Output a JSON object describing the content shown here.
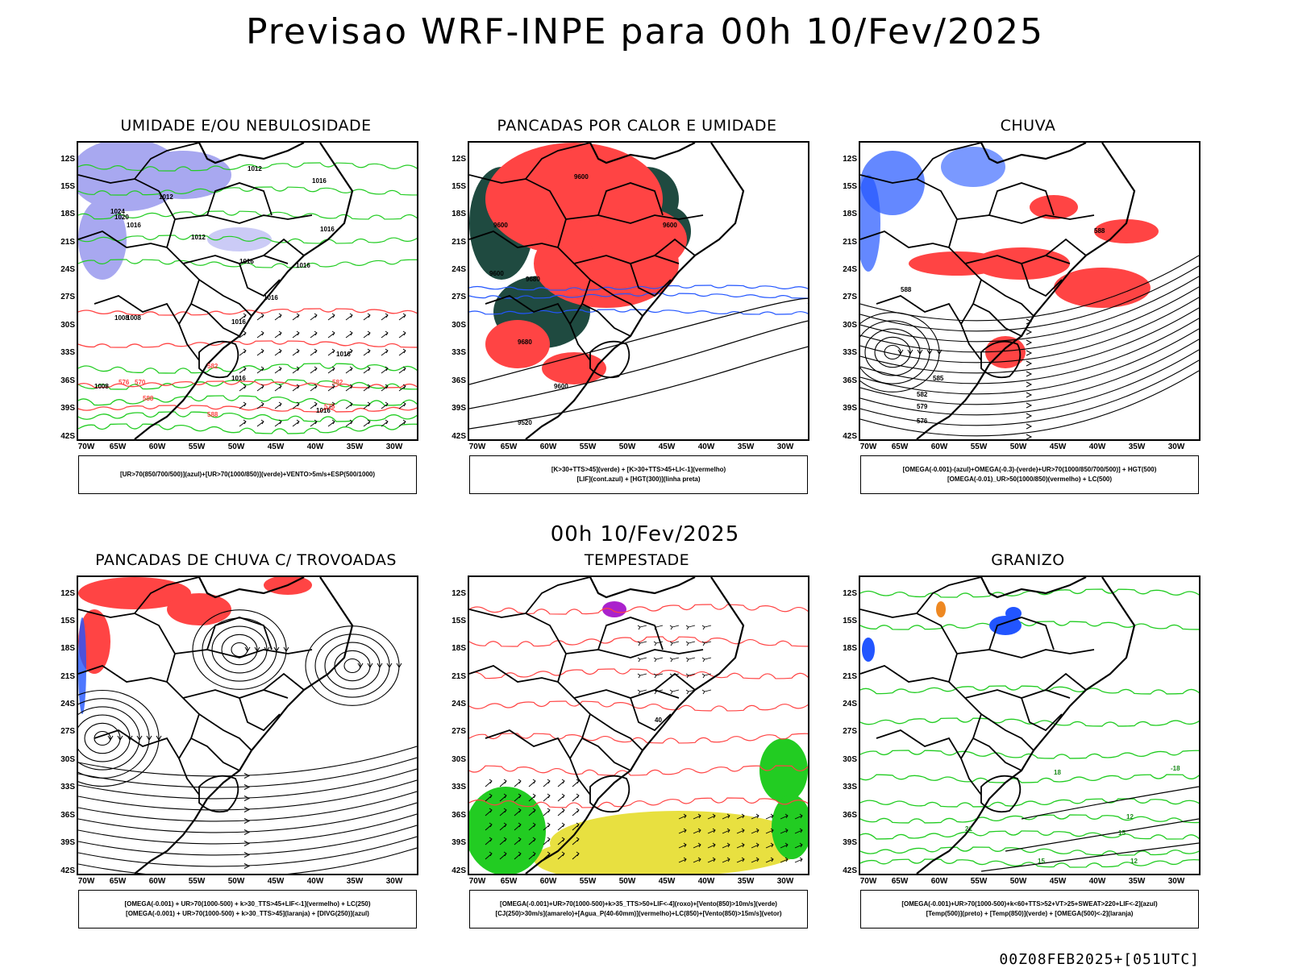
{
  "title": "Previsao WRF-INPE  para 00h 10/Fev/2025",
  "mid_title": "00h 10/Fev/2025",
  "footer": "00Z08FEB2025+[051UTC]",
  "axes": {
    "lat_labels": [
      "12S",
      "15S",
      "18S",
      "21S",
      "24S",
      "27S",
      "30S",
      "33S",
      "36S",
      "39S",
      "42S"
    ],
    "lon_labels": [
      "70W",
      "65W",
      "60W",
      "55W",
      "50W",
      "45W",
      "40W",
      "35W",
      "30W"
    ]
  },
  "colors": {
    "blue_fill": "#a8a8f0",
    "green": "#22cc22",
    "red": "#ff4444",
    "blue": "#2255ff",
    "dark_teal": "#1f4a40",
    "yellow": "#e8e040",
    "purple": "#aa22cc",
    "orange": "#ee8822",
    "black": "#000000"
  },
  "panels": [
    {
      "title": "UMIDADE E/OU NEBULOSIDADE",
      "legend": [
        "[UR>70(850/700/500)](azul)+[UR>70(1000/850)](verde)+VENTO>5m/s+ESP(500/1000)"
      ],
      "labels": [
        "1012",
        "1016",
        "1016",
        "1012",
        "1024",
        "1020",
        "1016",
        "1012",
        "1016",
        "1016",
        "1016",
        "1016",
        "1008",
        "1008",
        "1016",
        "1016",
        "1016",
        "1008",
        "576",
        "570",
        "588",
        "582",
        "576",
        "582",
        "588"
      ]
    },
    {
      "title": "PANCADAS POR CALOR E UMIDADE",
      "legend": [
        "[K>30+TTS>45](verde) + [K>30+TTS>45+LI<-1](vermelho)",
        "[LIF](cont.azul) + [HGT(300)](linha preta)"
      ],
      "labels": [
        "9600",
        "9600",
        "9600",
        "9600",
        "9680",
        "9680",
        "9600",
        "9520"
      ]
    },
    {
      "title": "CHUVA",
      "legend": [
        "[OMEGA(-0.001)-(azul)+OMEGA(-0.3)-(verde)+UR>70(1000/850/700/500)] + HGT(500)",
        "[OMEGA(-0.01)_UR>50(1000/850)(vermelho) + LC(500)"
      ],
      "labels": [
        "588",
        "588",
        "585",
        "582",
        "579",
        "576"
      ]
    },
    {
      "title": "PANCADAS DE CHUVA C/ TROVOADAS",
      "legend": [
        "[OMEGA(-0.001) + UR>70(1000-500) + k>30_TTS>45+LIF<-1](vermelho) + LC(250)",
        "[OMEGA(-0.001) + UR>70(1000-500) + k>30_TTS>45](laranja) + [DIVG(250)](azul)"
      ],
      "labels": []
    },
    {
      "title": "TEMPESTADE",
      "legend": [
        "[OMEGA(-0.001)+UR>70(1000-500)+k>35_TTS>50+LIF<-4](roxo)+[Vento(850)>10m/s](verde)",
        "[CJ(250)>30m/s](amarelo)+[Agua_P(40-60mm)](vermelho)+LC(850)+[Vento(850)>15m/s](vetor)"
      ],
      "labels": [
        "40"
      ]
    },
    {
      "title": "GRANIZO",
      "legend": [
        "[OMEGA(-0.001)+UR>70(1000-500)+k<60+TTS>52+VT>25+SWEAT>220+LIF<-2](azul)",
        "[Temp(500)](preto) + [Temp(850)](verde) + [OMEGA(500)<-2](laranja)"
      ],
      "labels": [
        "18",
        "12",
        "21",
        "15",
        "15",
        "12",
        "-18"
      ]
    }
  ]
}
